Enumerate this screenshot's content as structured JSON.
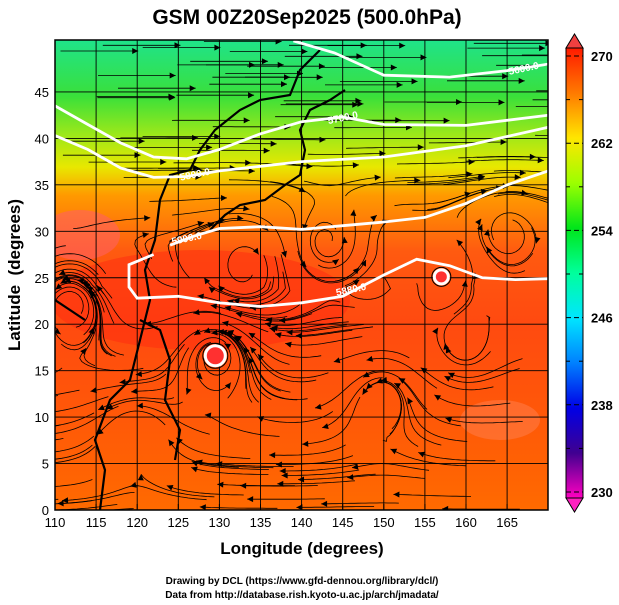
{
  "chart_data": {
    "type": "heatmap",
    "title": "GSM 00Z20Sep2025 (500.0hPa)",
    "xlabel": "Longitude (degrees)",
    "ylabel": "Latitude  (degrees)",
    "xlim": [
      110,
      170
    ],
    "ylim": [
      0,
      50
    ],
    "xticks": [
      "110",
      "115",
      "120",
      "125",
      "130",
      "135",
      "140",
      "145",
      "150",
      "155",
      "160",
      "165"
    ],
    "yticks": [
      "0",
      "5",
      "10",
      "15",
      "20",
      "25",
      "30",
      "35",
      "40",
      "45"
    ],
    "grid": true,
    "colorbar": {
      "range": [
        230,
        270
      ],
      "labels": [
        "270",
        "262",
        "254",
        "246",
        "238",
        "230"
      ],
      "colors": [
        "#ff1a00",
        "#ff7a00",
        "#ffe600",
        "#9cff00",
        "#00e61a",
        "#00ff9c",
        "#00e6ff",
        "#0080ff",
        "#0000e6",
        "#400090",
        "#ff00c0"
      ]
    },
    "contours": [
      {
        "label": "5600.0",
        "points": [
          [
            139,
            50.5
          ],
          [
            144,
            49.2
          ],
          [
            150,
            46.8
          ],
          [
            158,
            46.6
          ],
          [
            165,
            47.3
          ],
          [
            170,
            48
          ]
        ],
        "label_at": [
          167,
          47.6
        ]
      },
      {
        "label": "5700.0",
        "points": [
          [
            110,
            43.5
          ],
          [
            114,
            41.5
          ],
          [
            118,
            39.5
          ],
          [
            122,
            38
          ],
          [
            126,
            37.8
          ],
          [
            130,
            38.8
          ],
          [
            135,
            40.5
          ],
          [
            140,
            41.8
          ],
          [
            145,
            42.3
          ],
          [
            150,
            41.5
          ],
          [
            160,
            41.4
          ],
          [
            170,
            42.5
          ]
        ],
        "label_at": [
          145,
          42.3
        ]
      },
      {
        "label": "5800.0",
        "points": [
          [
            110,
            40.3
          ],
          [
            114,
            38.8
          ],
          [
            118,
            36.8
          ],
          [
            122,
            35.8
          ],
          [
            126,
            35.9
          ],
          [
            130,
            36.5
          ],
          [
            135,
            37
          ],
          [
            140,
            37.5
          ],
          [
            150,
            38
          ],
          [
            160,
            39.2
          ],
          [
            170,
            41.2
          ]
        ],
        "label_at": [
          127,
          36.2
        ]
      },
      {
        "label": "5900.0",
        "points": [
          [
            124,
            28.5
          ],
          [
            127,
            29.5
          ],
          [
            130,
            30.3
          ],
          [
            135,
            30.5
          ],
          [
            140,
            30.2
          ],
          [
            145,
            30.6
          ],
          [
            150,
            31
          ],
          [
            155,
            31.5
          ],
          [
            160,
            33
          ],
          [
            165,
            35
          ],
          [
            170,
            36.5
          ]
        ],
        "label_at": [
          126,
          29.3
        ]
      },
      {
        "label": "5880.0",
        "points": [
          [
            122,
            27.5
          ],
          [
            119,
            26.4
          ],
          [
            119,
            24
          ],
          [
            120,
            22.8
          ],
          [
            125,
            23
          ],
          [
            130,
            22.3
          ],
          [
            135,
            21.9
          ],
          [
            140,
            22.3
          ],
          [
            145,
            23
          ],
          [
            150,
            25.3
          ],
          [
            154,
            27
          ],
          [
            158,
            26.3
          ],
          [
            162,
            25
          ],
          [
            166,
            24.8
          ],
          [
            170,
            24.9
          ]
        ],
        "label_at": [
          146,
          23.8
        ]
      }
    ],
    "cyclones": [
      [
        129.5,
        16.6
      ],
      [
        157,
        25.1
      ]
    ]
  },
  "footer": {
    "line1": "Drawing by DCL (https://www.gfd-dennou.org/library/dcl/)",
    "line2": "Data from http://database.rish.kyoto-u.ac.jp/arch/jmadata/"
  }
}
